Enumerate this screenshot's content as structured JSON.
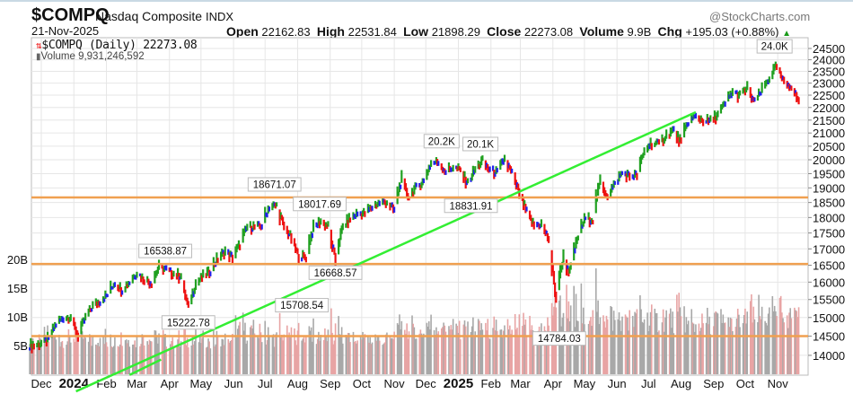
{
  "header": {
    "symbol": "$COMPQ",
    "name": "Nasdaq Composite",
    "exchange": "INDX",
    "date": "21-Nov-2025",
    "brand": "@StockCharts.com",
    "open_label": "Open",
    "open": "22162.83",
    "high_label": "High",
    "high": "22531.84",
    "low_label": "Low",
    "low": "21898.29",
    "close_label": "Close",
    "close": "22273.08",
    "volume_label": "Volume",
    "volume": "9.9B",
    "chg_label": "Chg",
    "chg": "+195.03 (+0.88%)",
    "chg_icon": "triangle-up-icon"
  },
  "legend": {
    "price": "$COMPQ (Daily) 22273.08",
    "volume": "Volume 9,931,246,592"
  },
  "colors": {
    "up": "#20a020",
    "down": "#ee1111",
    "neutral": "#2020ee",
    "volume_up": "#a8a8a8",
    "volume_down": "#e8a4a4",
    "horizontal_line": "#f0a050",
    "trend_line": "#33ee33",
    "grid": "#e6e6e6"
  },
  "chart_data": {
    "type": "ohlc-bar",
    "scale": "log",
    "grid": true,
    "ylim": [
      13520,
      24990
    ],
    "price_ticks": [
      "24500",
      "24000",
      "23500",
      "23000",
      "22500",
      "22000",
      "21500",
      "21000",
      "20500",
      "20000",
      "19500",
      "19000",
      "18500",
      "18000",
      "17500",
      "17000",
      "16500",
      "16000",
      "15500",
      "15000",
      "14500",
      "14000"
    ],
    "volume_ticks": [
      "20B",
      "15B",
      "10B",
      "5B"
    ],
    "x_labels": [
      "Dec",
      "2024",
      "Feb",
      "Mar",
      "Apr",
      "May",
      "Jun",
      "Jul",
      "Aug",
      "Sep",
      "Oct",
      "Nov",
      "Dec",
      "2025",
      "Feb",
      "Mar",
      "Apr",
      "May",
      "Jun",
      "Jul",
      "Aug",
      "Sep",
      "Oct",
      "Nov"
    ],
    "weekly_close": [
      [
        "2023-11-24",
        14250
      ],
      [
        "2023-12-01",
        14305
      ],
      [
        "2023-12-08",
        14404
      ],
      [
        "2023-12-15",
        14814
      ],
      [
        "2023-12-22",
        14993
      ],
      [
        "2023-12-29",
        15011
      ],
      [
        "2024-01-05",
        14524
      ],
      [
        "2024-01-12",
        14973
      ],
      [
        "2024-01-19",
        15311
      ],
      [
        "2024-01-26",
        15455
      ],
      [
        "2024-02-02",
        15629
      ],
      [
        "2024-02-09",
        15991
      ],
      [
        "2024-02-16",
        15776
      ],
      [
        "2024-02-23",
        15997
      ],
      [
        "2024-03-01",
        16275
      ],
      [
        "2024-03-08",
        16085
      ],
      [
        "2024-03-15",
        15973
      ],
      [
        "2024-03-22",
        16429
      ],
      [
        "2024-03-28",
        16379
      ],
      [
        "2024-04-05",
        16249
      ],
      [
        "2024-04-12",
        16175
      ],
      [
        "2024-04-19",
        15282
      ],
      [
        "2024-04-26",
        15928
      ],
      [
        "2024-05-03",
        16156
      ],
      [
        "2024-05-10",
        16341
      ],
      [
        "2024-05-17",
        16686
      ],
      [
        "2024-05-24",
        16921
      ],
      [
        "2024-05-31",
        16735
      ],
      [
        "2024-06-07",
        17133
      ],
      [
        "2024-06-14",
        17689
      ],
      [
        "2024-06-21",
        17689
      ],
      [
        "2024-06-28",
        17733
      ],
      [
        "2024-07-05",
        18353
      ],
      [
        "2024-07-12",
        18398
      ],
      [
        "2024-07-19",
        17727
      ],
      [
        "2024-07-26",
        17358
      ],
      [
        "2024-08-02",
        16776
      ],
      [
        "2024-08-09",
        16745
      ],
      [
        "2024-08-16",
        17631
      ],
      [
        "2024-08-23",
        17877
      ],
      [
        "2024-08-30",
        17714
      ],
      [
        "2024-09-06",
        16690
      ],
      [
        "2024-09-13",
        17684
      ],
      [
        "2024-09-20",
        17948
      ],
      [
        "2024-09-27",
        18120
      ],
      [
        "2024-10-04",
        18138
      ],
      [
        "2024-10-11",
        18342
      ],
      [
        "2024-10-18",
        18490
      ],
      [
        "2024-10-25",
        18519
      ],
      [
        "2024-11-01",
        18240
      ],
      [
        "2024-11-08",
        19287
      ],
      [
        "2024-11-15",
        18680
      ],
      [
        "2024-11-22",
        19004
      ],
      [
        "2024-11-29",
        19218
      ],
      [
        "2024-12-06",
        19860
      ],
      [
        "2024-12-13",
        19927
      ],
      [
        "2024-12-20",
        19573
      ],
      [
        "2024-12-27",
        19722
      ],
      [
        "2025-01-03",
        19622
      ],
      [
        "2025-01-10",
        19162
      ],
      [
        "2025-01-17",
        19630
      ],
      [
        "2025-01-24",
        19954
      ],
      [
        "2025-01-31",
        19627
      ],
      [
        "2025-02-07",
        19524
      ],
      [
        "2025-02-14",
        20027
      ],
      [
        "2025-02-21",
        19524
      ],
      [
        "2025-02-28",
        18847
      ],
      [
        "2025-03-07",
        18196
      ],
      [
        "2025-03-14",
        17754
      ],
      [
        "2025-03-21",
        17784
      ],
      [
        "2025-03-28",
        17323
      ],
      [
        "2025-04-04",
        15588
      ],
      [
        "2025-04-11",
        16724
      ],
      [
        "2025-04-17",
        16286
      ],
      [
        "2025-04-25",
        17383
      ],
      [
        "2025-05-02",
        17978
      ],
      [
        "2025-05-09",
        17929
      ],
      [
        "2025-05-16",
        19211
      ],
      [
        "2025-05-23",
        18737
      ],
      [
        "2025-05-30",
        19114
      ],
      [
        "2025-06-06",
        19530
      ],
      [
        "2025-06-13",
        19407
      ],
      [
        "2025-06-20",
        19447
      ],
      [
        "2025-06-27",
        20273
      ],
      [
        "2025-07-03",
        20601
      ],
      [
        "2025-07-11",
        20586
      ],
      [
        "2025-07-18",
        20896
      ],
      [
        "2025-07-25",
        21108
      ],
      [
        "2025-08-01",
        20650
      ],
      [
        "2025-08-08",
        21450
      ],
      [
        "2025-08-15",
        21623
      ],
      [
        "2025-08-22",
        21496
      ],
      [
        "2025-08-29",
        21456
      ],
      [
        "2025-09-05",
        21700
      ],
      [
        "2025-09-12",
        22141
      ],
      [
        "2025-09-19",
        22631
      ],
      [
        "2025-09-26",
        22484
      ],
      [
        "2025-10-03",
        22780
      ],
      [
        "2025-10-10",
        22204
      ],
      [
        "2025-10-17",
        22680
      ],
      [
        "2025-10-24",
        23205
      ],
      [
        "2025-10-31",
        23725
      ],
      [
        "2025-11-07",
        23005
      ],
      [
        "2025-11-14",
        22901
      ],
      [
        "2025-11-21",
        22273
      ]
    ],
    "monthly_avg_volume_B": [
      5.0,
      5.5,
      5.3,
      5.3,
      5.5,
      5.0,
      5.0,
      6.5,
      5.8,
      5.8,
      5.5,
      5.5,
      6.5,
      7.5,
      7.0,
      6.5,
      6.8,
      8.5,
      8.5,
      8.5,
      8.5,
      8.0,
      8.0,
      9.0,
      9.5
    ],
    "horizontal_lines": [
      18671.07,
      16538.87,
      14500
    ],
    "trend_lines": [
      {
        "start": [
          "2024-01-03",
          13110
        ],
        "end": [
          "2025-08-15",
          21812
        ]
      },
      {
        "start": [
          "2024-02-23",
          13510
        ],
        "end": [
          "2024-03-24",
          13893
        ]
      }
    ],
    "annotations": [
      {
        "text": "16538.87",
        "date": "2024-03-28",
        "value": 16538.87,
        "position": "above"
      },
      {
        "text": "15222.78",
        "date": "2024-04-19",
        "value": 15222.78,
        "position": "below"
      },
      {
        "text": "18671.07",
        "date": "2024-07-10",
        "value": 18671.07,
        "position": "above"
      },
      {
        "text": "15708.54",
        "date": "2024-08-05",
        "value": 15708.54,
        "position": "below"
      },
      {
        "text": "18017.69",
        "date": "2024-08-22",
        "value": 18017.69,
        "position": "above"
      },
      {
        "text": "16668.57",
        "date": "2024-09-06",
        "value": 16668.57,
        "position": "below"
      },
      {
        "text": "20.2K",
        "date": "2024-12-16",
        "value": 20204,
        "position": "above"
      },
      {
        "text": "18831.91",
        "date": "2025-01-13",
        "value": 18831.91,
        "position": "below"
      },
      {
        "text": "20.1K",
        "date": "2025-01-22",
        "value": 20100,
        "position": "above"
      },
      {
        "text": "14784.03",
        "date": "2025-04-07",
        "value": 14784.03,
        "position": "below"
      },
      {
        "text": "24.0K",
        "date": "2025-10-29",
        "value": 24019,
        "position": "above"
      }
    ]
  }
}
